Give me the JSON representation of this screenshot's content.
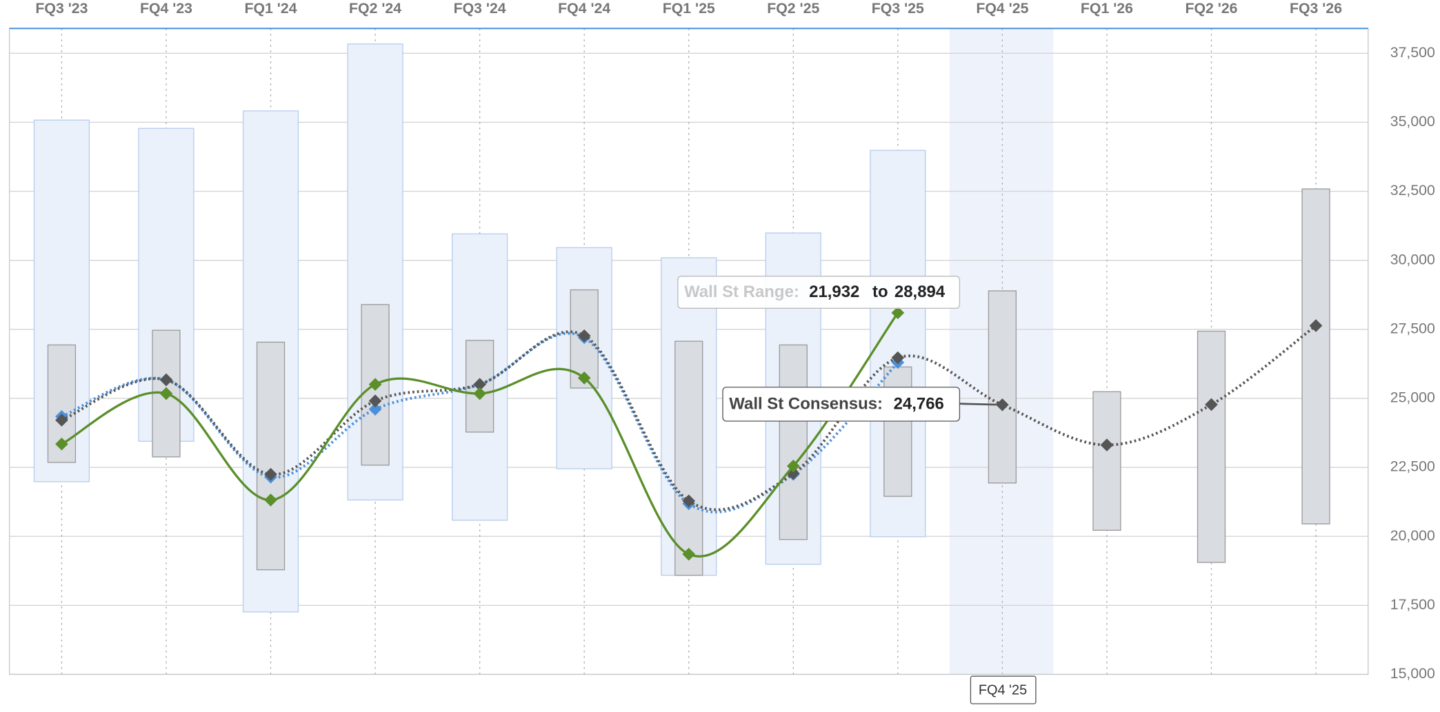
{
  "chart_data": {
    "type": "range-line",
    "categories": [
      "FQ3 '23",
      "FQ4 '23",
      "FQ1 '24",
      "FQ2 '24",
      "FQ3 '24",
      "FQ4 '24",
      "FQ1 '25",
      "FQ2 '25",
      "FQ3 '25",
      "FQ4 '25",
      "FQ1 '26",
      "FQ2 '26",
      "FQ3 '26"
    ],
    "ylim": [
      15000,
      38400
    ],
    "yticks": [
      {
        "value": 15000,
        "label": "15,000"
      },
      {
        "value": 17500,
        "label": "17,500"
      },
      {
        "value": 20000,
        "label": "20,000"
      },
      {
        "value": 22500,
        "label": "22,500"
      },
      {
        "value": 25000,
        "label": "25,000"
      },
      {
        "value": 27500,
        "label": "27,500"
      },
      {
        "value": 30000,
        "label": "30,000"
      },
      {
        "value": 32500,
        "label": "32,500"
      },
      {
        "value": 35000,
        "label": "35,000"
      },
      {
        "value": 37500,
        "label": "37,500"
      }
    ],
    "grid": true,
    "outer_color": "#eaf1fb",
    "inner_color": "#d9dce1",
    "outer_ranges": [
      [
        21982,
        35080
      ],
      [
        23444,
        34780
      ],
      [
        17261,
        35413
      ],
      [
        21317,
        37839
      ],
      [
        20585,
        30958
      ],
      [
        22447,
        30459
      ],
      [
        18590,
        30093
      ],
      [
        18989,
        30991
      ],
      [
        19987,
        33983
      ],
      null,
      null,
      null,
      null
    ],
    "inner_ranges": [
      [
        22680,
        26935
      ],
      [
        22879,
        27467
      ],
      [
        18790,
        27035
      ],
      [
        22580,
        28398
      ],
      [
        23777,
        27101
      ],
      [
        25372,
        28930
      ],
      [
        18590,
        27068
      ],
      [
        19887,
        26935
      ],
      [
        21450,
        26137
      ],
      [
        21932,
        28894
      ],
      [
        20220,
        25240
      ],
      [
        19056,
        27434
      ],
      [
        20452,
        32587
      ]
    ],
    "series": [
      {
        "color": "#4a90d9",
        "dash": true,
        "values": [
          24342,
          25672,
          22148,
          24608,
          25505,
          27200,
          21184,
          22247,
          26300,
          null,
          null,
          null,
          null
        ]
      },
      {
        "color": "#555555",
        "dash": true,
        "values": [
          24209,
          25672,
          22247,
          24907,
          25505,
          27267,
          21283,
          22280,
          26470,
          24766,
          23311,
          24774,
          27633
        ]
      },
      {
        "color": "#5a8f29",
        "dash": false,
        "values": [
          23345,
          25173,
          21317,
          25505,
          25173,
          25738,
          19355,
          22547,
          28099,
          null,
          null,
          null,
          null
        ]
      }
    ],
    "range_tooltip": {
      "label": "Wall St Range:",
      "low": "21,932",
      "to": "to",
      "high": "28,894"
    },
    "consensus_tooltip": {
      "label": "Wall St Consensus:",
      "value": "24,766"
    },
    "highlight": "FQ4 '25"
  }
}
